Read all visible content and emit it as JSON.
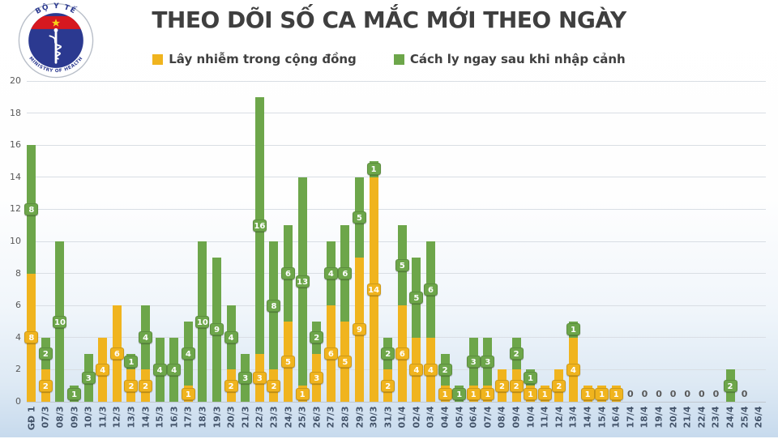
{
  "logo": {
    "top_text": "BỘ Y TẾ",
    "bottom_text": "MINISTRY OF HEALTH"
  },
  "chart_data": {
    "type": "bar",
    "stacked": true,
    "title": "THEO DÕI SỐ CA MẮC MỚI THEO NGÀY",
    "xlabel": "",
    "ylabel": "",
    "ylim": [
      0,
      20
    ],
    "y_ticks": [
      0,
      2,
      4,
      6,
      8,
      10,
      12,
      14,
      16,
      18,
      20
    ],
    "grid": true,
    "legend_position": "top",
    "categories": [
      "GĐ 1",
      "07/3",
      "08/3",
      "09/3",
      "10/3",
      "11/3",
      "12/3",
      "13/3",
      "14/3",
      "15/3",
      "16/3",
      "17/3",
      "18/3",
      "19/3",
      "20/3",
      "21/3",
      "22/3",
      "23/3",
      "24/3",
      "25/3",
      "26/3",
      "27/3",
      "28/3",
      "29/3",
      "30/3",
      "31/3",
      "01/4",
      "02/4",
      "03/4",
      "04/4",
      "05/4",
      "06/4",
      "07/4",
      "08/4",
      "09/4",
      "10/4",
      "11/4",
      "12/4",
      "13/4",
      "14/4",
      "15/4",
      "16/4",
      "17/4",
      "18/4",
      "19/4",
      "20/4",
      "21/4",
      "22/4",
      "23/4",
      "24/4",
      "25/4",
      "26/4"
    ],
    "series": [
      {
        "name": "Lây nhiễm trong cộng đồng",
        "color": "#F0B41E",
        "values": [
          8,
          2,
          0,
          0,
          0,
          4,
          6,
          2,
          2,
          0,
          0,
          1,
          0,
          0,
          2,
          0,
          3,
          2,
          5,
          1,
          3,
          6,
          5,
          9,
          14,
          2,
          6,
          4,
          4,
          1,
          0,
          1,
          1,
          2,
          2,
          1,
          1,
          2,
          4,
          1,
          1,
          1,
          0,
          0,
          0,
          0,
          0,
          0,
          0,
          0,
          0,
          0
        ]
      },
      {
        "name": "Cách ly ngay sau khi nhập cảnh",
        "color": "#6DA64A",
        "values": [
          8,
          2,
          10,
          1,
          3,
          0,
          0,
          1,
          4,
          4,
          4,
          4,
          10,
          9,
          4,
          3,
          16,
          8,
          6,
          13,
          2,
          4,
          6,
          5,
          1,
          2,
          5,
          5,
          6,
          2,
          1,
          3,
          3,
          0,
          2,
          1,
          0,
          0,
          1,
          0,
          0,
          0,
          0,
          0,
          0,
          0,
          0,
          0,
          0,
          2,
          0,
          0
        ]
      }
    ],
    "zero_labels": [
      "17/4",
      "18/4",
      "19/4",
      "20/4",
      "21/4",
      "22/4",
      "23/4",
      "25/4"
    ],
    "axis_colors": {
      "y_tick": "#595959",
      "x_tick": "#44546A",
      "gridline": "#D9DEE4"
    }
  }
}
